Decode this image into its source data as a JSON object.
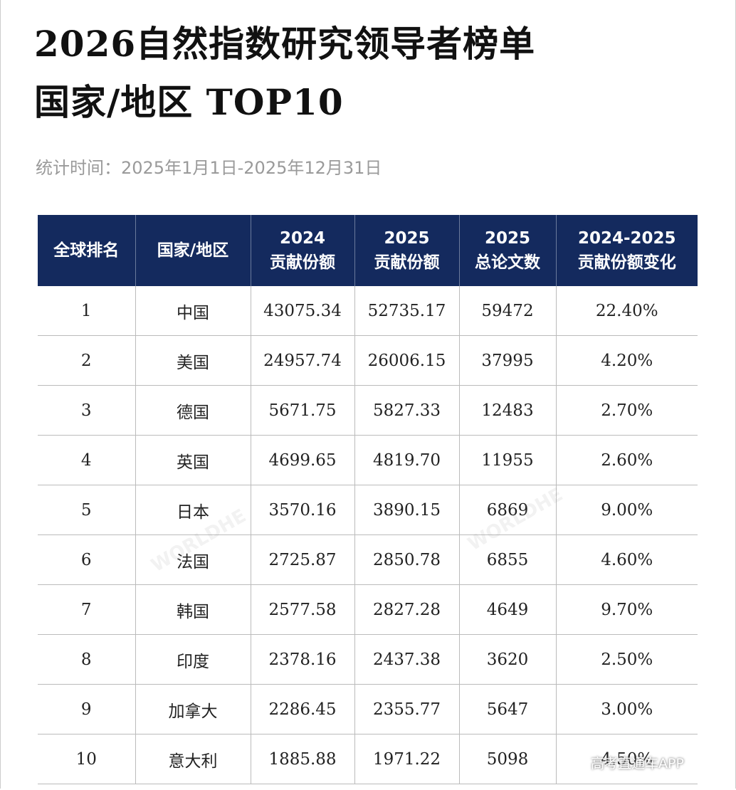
{
  "header": {
    "title_lines": [
      "2026自然指数研究领导者榜单",
      "国家/地区 TOP10"
    ],
    "subtitle": "统计时间：2025年1月1日-2025年12月31日"
  },
  "table": {
    "columns": [
      [
        "全球排名"
      ],
      [
        "国家/地区"
      ],
      [
        "2024",
        "贡献份额"
      ],
      [
        "2025",
        "贡献份额"
      ],
      [
        "2025",
        "总论文数"
      ],
      [
        "2024-2025",
        "贡献份额变化"
      ]
    ],
    "rows": [
      [
        1,
        "中国",
        "43075.34",
        "52735.17",
        "59472",
        "22.40%"
      ],
      [
        2,
        "美国",
        "24957.74",
        "26006.15",
        "37995",
        "4.20%"
      ],
      [
        3,
        "德国",
        "5671.75",
        "5827.33",
        "12483",
        "2.70%"
      ],
      [
        4,
        "英国",
        "4699.65",
        "4819.70",
        "11955",
        "2.60%"
      ],
      [
        5,
        "日本",
        "3570.16",
        "3890.15",
        "6869",
        "9.00%"
      ],
      [
        6,
        "法国",
        "2725.87",
        "2850.78",
        "6855",
        "4.60%"
      ],
      [
        7,
        "韩国",
        "2577.58",
        "2827.28",
        "4649",
        "9.70%"
      ],
      [
        8,
        "印度",
        "2378.16",
        "2437.38",
        "3620",
        "2.50%"
      ],
      [
        9,
        "加拿大",
        "2286.45",
        "2355.77",
        "5647",
        "3.00%"
      ],
      [
        10,
        "意大利",
        "1885.88",
        "1971.22",
        "5098",
        "4.50%"
      ]
    ]
  },
  "watermarks": [
    "WORLDHE",
    "WORLDHE",
    "高考直通车APP"
  ]
}
